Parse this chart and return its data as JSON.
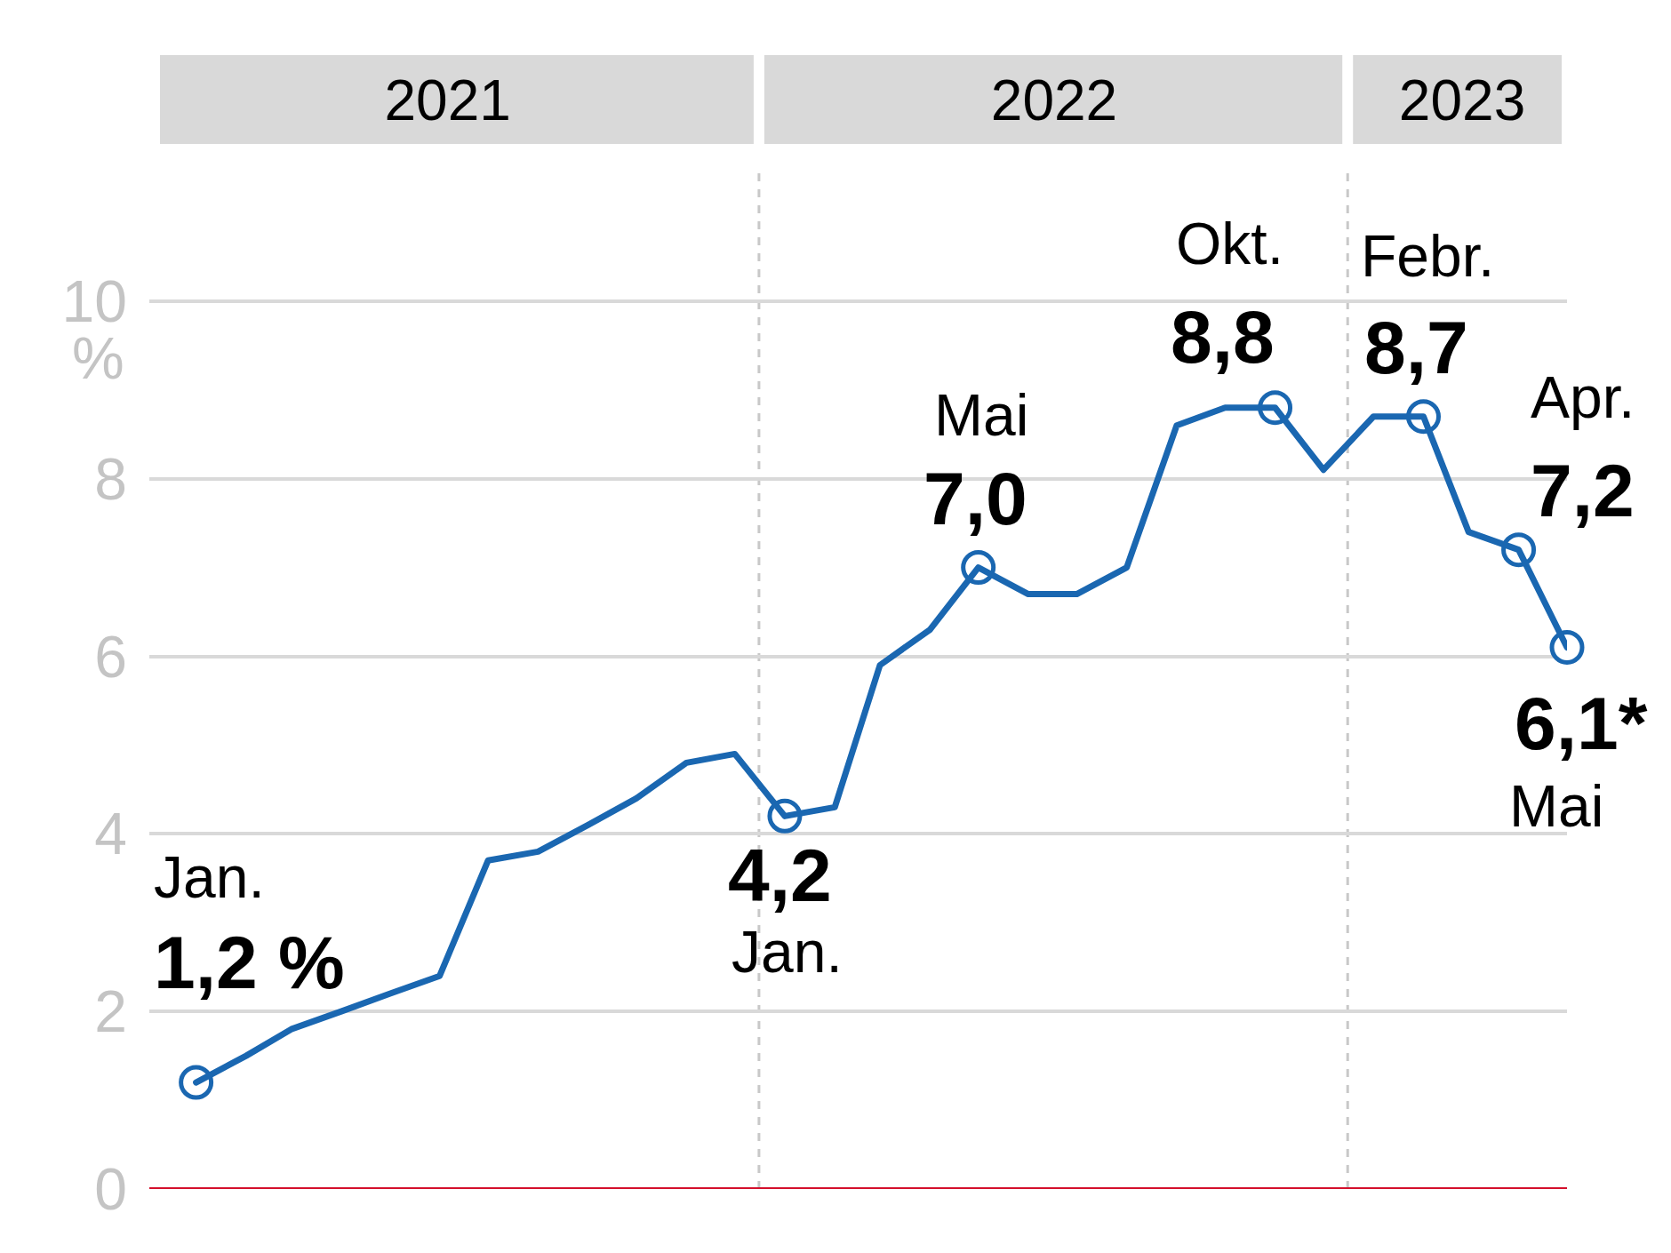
{
  "chart_data": {
    "type": "line",
    "xlim": [
      "2020-12-03",
      "2023-05-01"
    ],
    "xticks": [
      {
        "value": "2021-06-06",
        "label": "2021"
      },
      {
        "value": "2022-06-17",
        "label": "2022"
      },
      {
        "value": "2023-02-25",
        "label": "2023"
      }
    ],
    "ylim": [
      0,
      11.5
    ],
    "yticks": [
      0,
      2,
      4,
      6,
      8,
      10
    ],
    "ylabel": "%",
    "grid": "y",
    "series": [
      {
        "type": "line",
        "color": "#1a67b1",
        "line_style": "solid",
        "x": [
          "2021-01",
          "2021-02",
          "2021-03",
          "2021-04",
          "2021-05",
          "2021-06",
          "2021-07",
          "2021-08",
          "2021-09",
          "2021-10",
          "2021-11",
          "2021-12",
          "2022-01",
          "2022-02",
          "2022-03",
          "2022-04",
          "2022-05",
          "2022-06",
          "2022-07",
          "2022-08",
          "2022-09",
          "2022-10",
          "2022-11",
          "2022-12",
          "2023-01",
          "2023-02",
          "2023-03",
          "2023-04",
          "2023-05"
        ],
        "values": [
          1.2,
          1.5,
          1.8,
          2.0,
          2.2,
          2.4,
          3.7,
          3.8,
          4.1,
          4.4,
          4.8,
          4.9,
          4.2,
          4.3,
          5.9,
          6.3,
          7.0,
          6.7,
          6.7,
          7.0,
          8.6,
          8.8,
          8.8,
          8.1,
          8.7,
          8.7,
          7.4,
          7.2,
          6.1
        ]
      },
      {
        "type": "scatter",
        "color": "#1a67b1",
        "marker": "circle",
        "x": [
          "2021-01",
          "2022-01",
          "2022-05",
          "2022-11",
          "2023-02",
          "2023-04",
          "2023-05"
        ],
        "values": [
          1.2,
          4.2,
          7.0,
          8.8,
          8.7,
          7.2,
          6.1
        ]
      }
    ],
    "ref_lines": [
      {
        "axis": "x",
        "value": "2021-12-16",
        "color": "#c8c8c8",
        "line_style": "dashed"
      },
      {
        "axis": "x",
        "value": "2022-12-16",
        "color": "#c8c8c8",
        "line_style": "dashed"
      },
      {
        "axis": "y",
        "value": 0,
        "color": "#d4102c",
        "line_style": "solid"
      }
    ],
    "annotations": [
      {
        "text": "Jan.",
        "x": "2021-01",
        "y": 1.2
      },
      {
        "text": "1,2 %",
        "x": "2021-01",
        "y": 1.2
      },
      {
        "text": "Jan.",
        "x": "2022-01",
        "y": 4.2
      },
      {
        "text": "4,2",
        "x": "2022-01",
        "y": 4.2
      },
      {
        "text": "Mai",
        "x": "2022-05",
        "y": 7.0
      },
      {
        "text": "7,0",
        "x": "2022-05",
        "y": 7.0
      },
      {
        "text": "Okt.",
        "x": "2022-10",
        "y": 8.8
      },
      {
        "text": "8,8",
        "x": "2022-10",
        "y": 8.8
      },
      {
        "text": "Febr.",
        "x": "2023-02",
        "y": 8.7
      },
      {
        "text": "8,7",
        "x": "2023-02",
        "y": 8.7
      },
      {
        "text": "Apr.",
        "x": "2023-04",
        "y": 7.2
      },
      {
        "text": "7,2",
        "x": "2023-04",
        "y": 7.2
      },
      {
        "text": "Mai",
        "x": "2023-05",
        "y": 6.1
      },
      {
        "text": "6,1*",
        "x": "2023-05",
        "y": 6.1
      }
    ]
  }
}
